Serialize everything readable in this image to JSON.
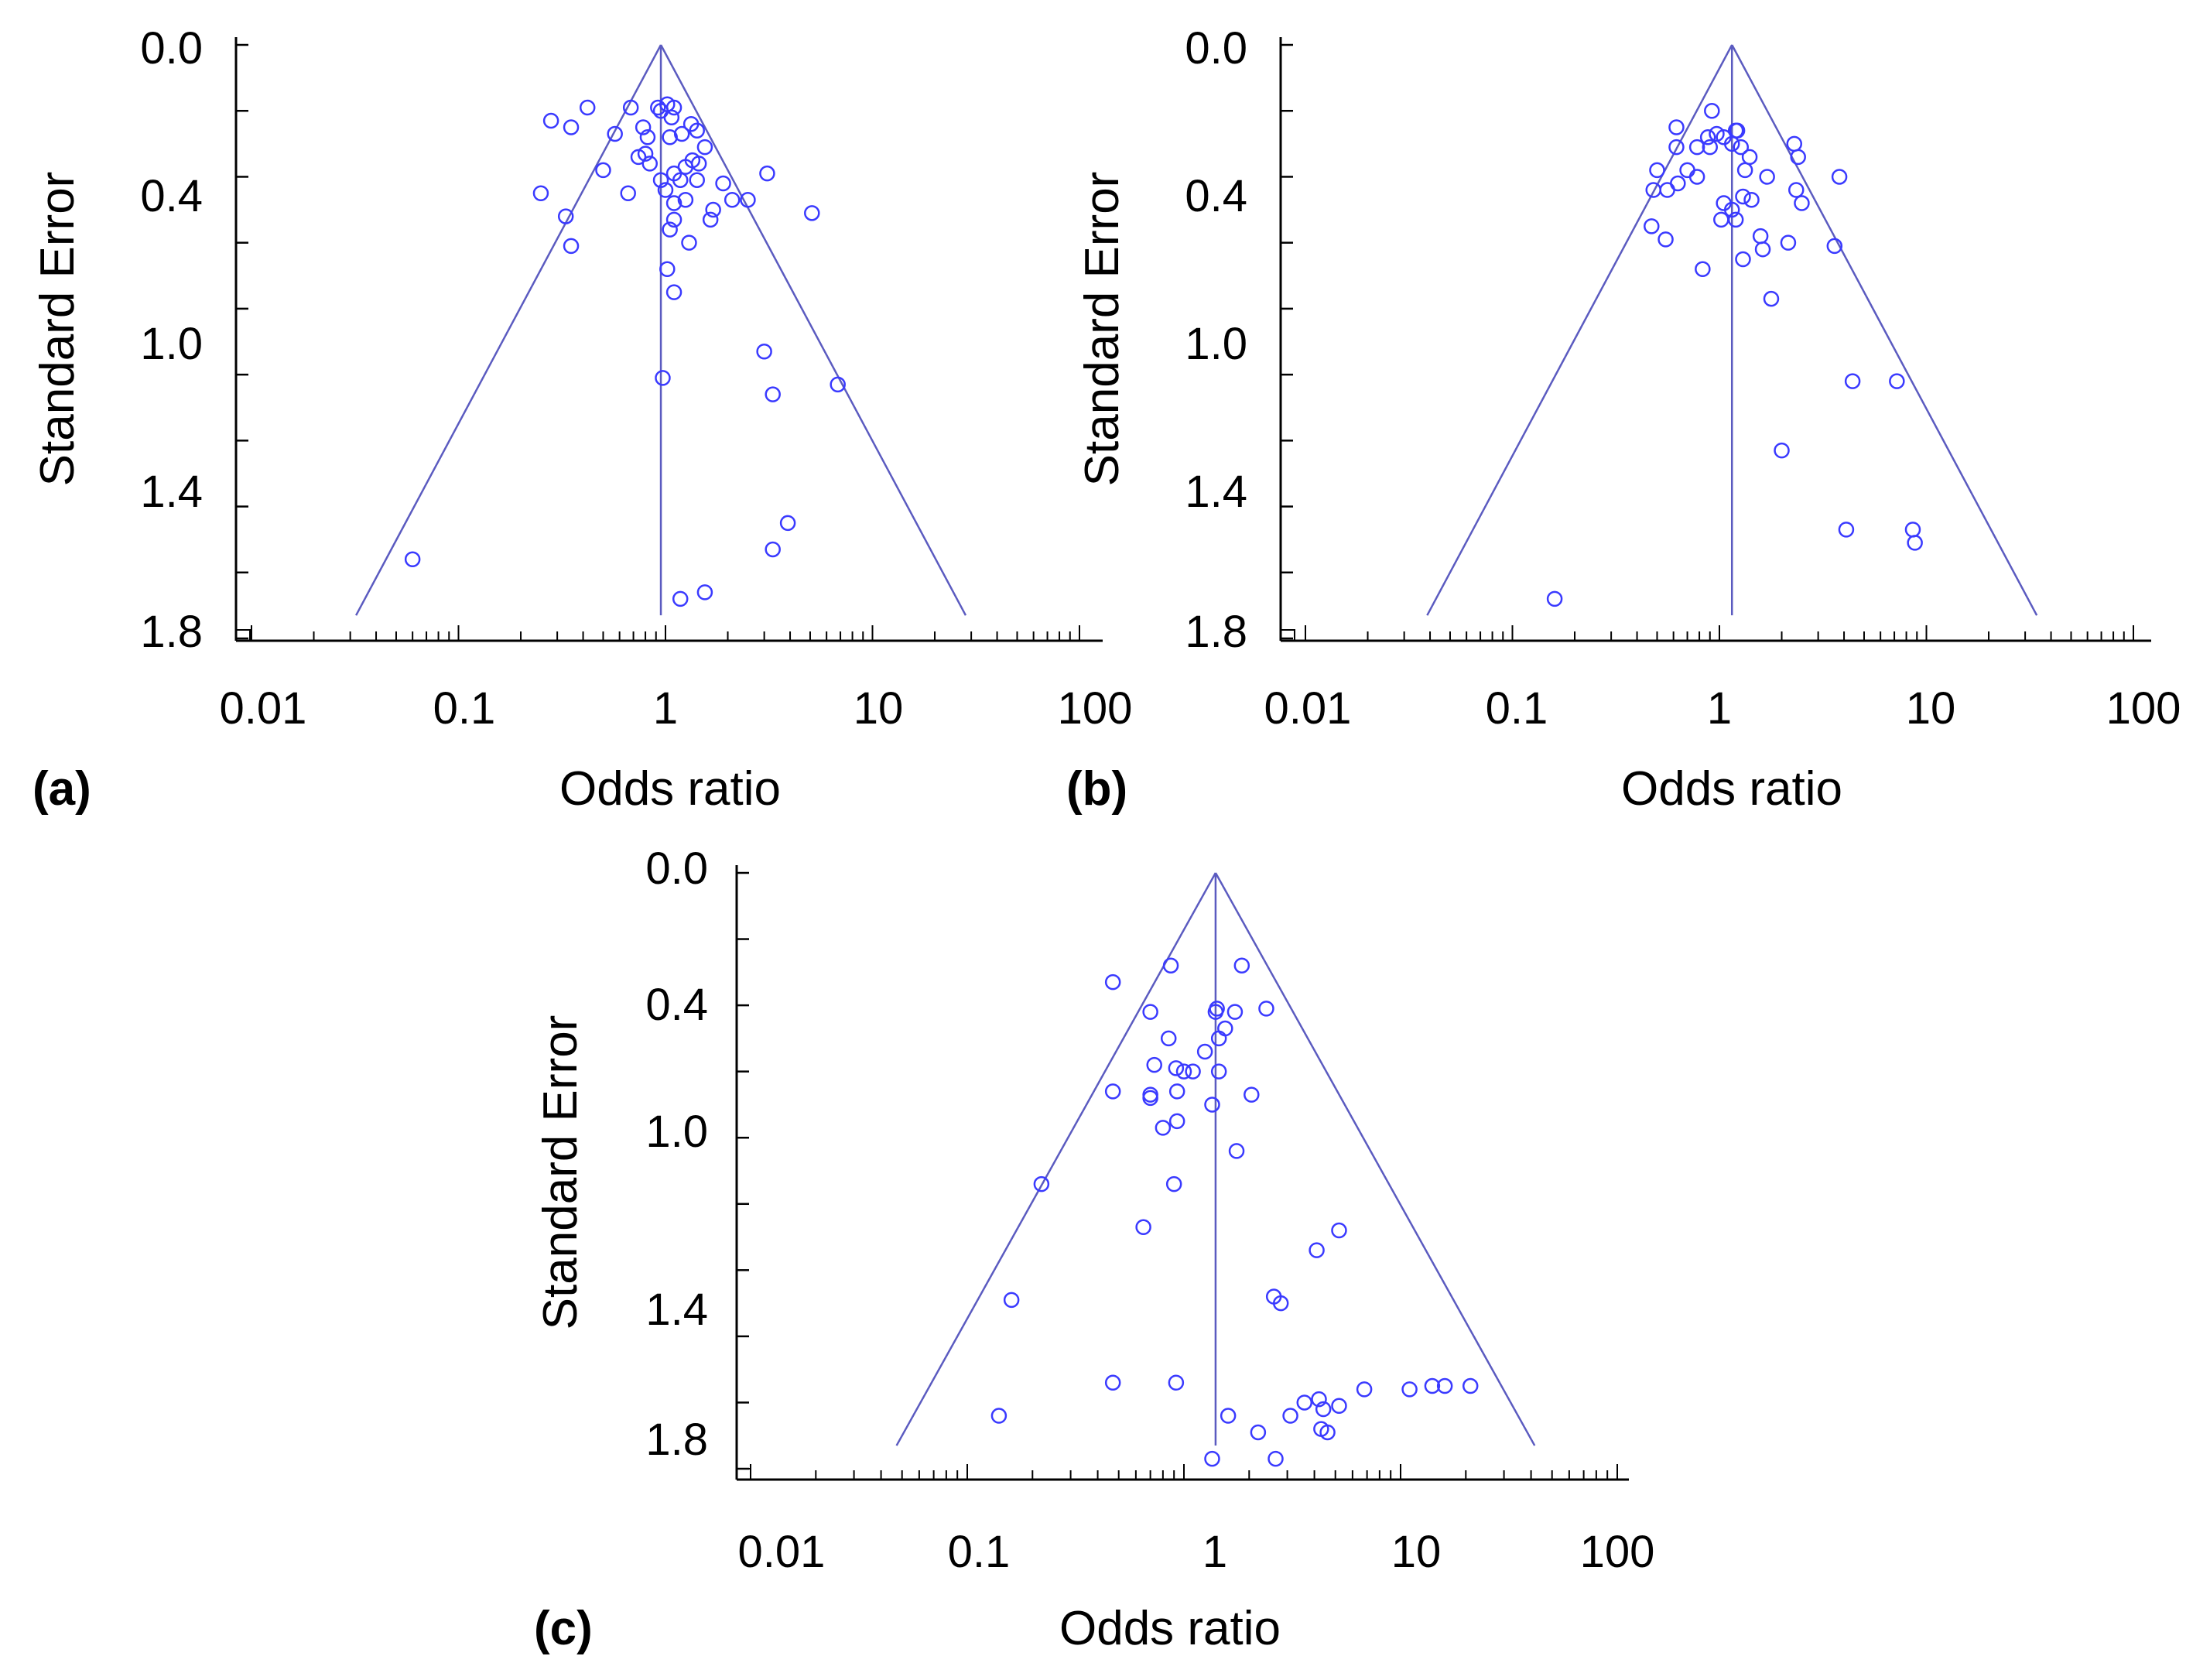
{
  "colors": {
    "marker": "#3a3aff",
    "funnel": "#5b5bc0",
    "axis": "#000000"
  },
  "chart_data": [
    {
      "type": "scatter",
      "panel_label": "(a)",
      "xlabel": "Odds ratio",
      "ylabel": "Standard Error",
      "xscale": "log",
      "xlim": [
        0.01,
        100
      ],
      "ylim": [
        0.0,
        1.85
      ],
      "x_ticks": [
        "0.01",
        "0.1",
        "1",
        "10",
        "100"
      ],
      "y_ticks": [
        "0.0",
        "0.4",
        "1.0",
        "1.4",
        "1.8"
      ],
      "pooled_or": 0.95,
      "funnel_bottom_se": 1.73,
      "points": [
        {
          "x": 0.28,
          "se": 0.23
        },
        {
          "x": 0.35,
          "se": 0.25
        },
        {
          "x": 0.42,
          "se": 0.19
        },
        {
          "x": 0.57,
          "se": 0.27
        },
        {
          "x": 0.68,
          "se": 0.19
        },
        {
          "x": 0.78,
          "se": 0.25
        },
        {
          "x": 0.82,
          "se": 0.28
        },
        {
          "x": 0.92,
          "se": 0.19
        },
        {
          "x": 0.95,
          "se": 0.2
        },
        {
          "x": 1.02,
          "se": 0.18
        },
        {
          "x": 1.07,
          "se": 0.22
        },
        {
          "x": 1.1,
          "se": 0.19
        },
        {
          "x": 1.2,
          "se": 0.27
        },
        {
          "x": 1.33,
          "se": 0.24
        },
        {
          "x": 1.42,
          "se": 0.26
        },
        {
          "x": 1.55,
          "se": 0.31
        },
        {
          "x": 1.05,
          "se": 0.28
        },
        {
          "x": 0.8,
          "se": 0.33
        },
        {
          "x": 0.74,
          "se": 0.34
        },
        {
          "x": 0.84,
          "se": 0.36
        },
        {
          "x": 0.5,
          "se": 0.38
        },
        {
          "x": 1.35,
          "se": 0.35
        },
        {
          "x": 1.45,
          "se": 0.36
        },
        {
          "x": 1.25,
          "se": 0.37
        },
        {
          "x": 1.1,
          "se": 0.39
        },
        {
          "x": 0.95,
          "se": 0.41
        },
        {
          "x": 1.18,
          "se": 0.41
        },
        {
          "x": 1.42,
          "se": 0.41
        },
        {
          "x": 1.9,
          "se": 0.42
        },
        {
          "x": 3.1,
          "se": 0.39
        },
        {
          "x": 0.25,
          "se": 0.45
        },
        {
          "x": 0.66,
          "se": 0.45
        },
        {
          "x": 1.0,
          "se": 0.44
        },
        {
          "x": 1.1,
          "se": 0.48
        },
        {
          "x": 1.25,
          "se": 0.47
        },
        {
          "x": 2.1,
          "se": 0.47
        },
        {
          "x": 2.5,
          "se": 0.47
        },
        {
          "x": 1.7,
          "se": 0.5
        },
        {
          "x": 5.1,
          "se": 0.51
        },
        {
          "x": 0.33,
          "se": 0.52
        },
        {
          "x": 1.1,
          "se": 0.53
        },
        {
          "x": 1.05,
          "se": 0.56
        },
        {
          "x": 1.3,
          "se": 0.6
        },
        {
          "x": 1.65,
          "se": 0.53
        },
        {
          "x": 0.35,
          "se": 0.61
        },
        {
          "x": 1.02,
          "se": 0.68
        },
        {
          "x": 1.1,
          "se": 0.75
        },
        {
          "x": 3.0,
          "se": 0.93
        },
        {
          "x": 0.97,
          "se": 1.01
        },
        {
          "x": 3.3,
          "se": 1.06
        },
        {
          "x": 6.8,
          "se": 1.03
        },
        {
          "x": 3.9,
          "se": 1.45
        },
        {
          "x": 3.3,
          "se": 1.53
        },
        {
          "x": 0.06,
          "se": 1.56
        },
        {
          "x": 1.55,
          "se": 1.66
        },
        {
          "x": 1.18,
          "se": 1.68
        }
      ]
    },
    {
      "type": "scatter",
      "panel_label": "(b)",
      "xlabel": "Odds ratio",
      "ylabel": "Standard Error",
      "xscale": "log",
      "xlim": [
        0.01,
        100
      ],
      "ylim": [
        0.0,
        1.85
      ],
      "x_ticks": [
        "0.01",
        "0.1",
        "1",
        "10",
        "100"
      ],
      "y_ticks": [
        "0.0",
        "0.4",
        "1.0",
        "1.4",
        "1.8"
      ],
      "pooled_or": 1.15,
      "funnel_bottom_se": 1.73,
      "points": [
        {
          "x": 0.92,
          "se": 0.2
        },
        {
          "x": 0.62,
          "se": 0.25
        },
        {
          "x": 1.2,
          "se": 0.26
        },
        {
          "x": 1.22,
          "se": 0.26
        },
        {
          "x": 0.88,
          "se": 0.28
        },
        {
          "x": 0.97,
          "se": 0.27
        },
        {
          "x": 1.05,
          "se": 0.28
        },
        {
          "x": 0.62,
          "se": 0.31
        },
        {
          "x": 0.78,
          "se": 0.31
        },
        {
          "x": 0.9,
          "se": 0.31
        },
        {
          "x": 1.15,
          "se": 0.3
        },
        {
          "x": 1.27,
          "se": 0.31
        },
        {
          "x": 2.3,
          "se": 0.3
        },
        {
          "x": 1.4,
          "se": 0.34
        },
        {
          "x": 2.4,
          "se": 0.34
        },
        {
          "x": 0.5,
          "se": 0.38
        },
        {
          "x": 0.7,
          "se": 0.38
        },
        {
          "x": 0.78,
          "se": 0.4
        },
        {
          "x": 1.33,
          "se": 0.38
        },
        {
          "x": 1.7,
          "se": 0.4
        },
        {
          "x": 3.8,
          "se": 0.4
        },
        {
          "x": 0.48,
          "se": 0.44
        },
        {
          "x": 0.56,
          "se": 0.44
        },
        {
          "x": 0.63,
          "se": 0.42
        },
        {
          "x": 1.3,
          "se": 0.46
        },
        {
          "x": 1.43,
          "se": 0.47
        },
        {
          "x": 2.35,
          "se": 0.44
        },
        {
          "x": 2.5,
          "se": 0.48
        },
        {
          "x": 1.05,
          "se": 0.48
        },
        {
          "x": 1.15,
          "se": 0.5
        },
        {
          "x": 1.02,
          "se": 0.53
        },
        {
          "x": 1.2,
          "se": 0.53
        },
        {
          "x": 0.47,
          "se": 0.55
        },
        {
          "x": 0.55,
          "se": 0.59
        },
        {
          "x": 1.58,
          "se": 0.58
        },
        {
          "x": 1.62,
          "se": 0.62
        },
        {
          "x": 2.15,
          "se": 0.6
        },
        {
          "x": 3.6,
          "se": 0.61
        },
        {
          "x": 1.3,
          "se": 0.65
        },
        {
          "x": 0.83,
          "se": 0.68
        },
        {
          "x": 1.78,
          "se": 0.77
        },
        {
          "x": 4.4,
          "se": 1.02
        },
        {
          "x": 7.2,
          "se": 1.02
        },
        {
          "x": 2.0,
          "se": 1.23
        },
        {
          "x": 4.1,
          "se": 1.47
        },
        {
          "x": 8.6,
          "se": 1.47
        },
        {
          "x": 8.8,
          "se": 1.51
        },
        {
          "x": 0.16,
          "se": 1.68
        }
      ]
    },
    {
      "type": "scatter",
      "panel_label": "(c)",
      "xlabel": "Odds ratio",
      "ylabel": "Standard Error",
      "xscale": "log",
      "xlim": [
        0.01,
        100
      ],
      "ylim": [
        0.0,
        1.85
      ],
      "x_ticks": [
        "0.01",
        "0.1",
        "1",
        "10",
        "100"
      ],
      "y_ticks": [
        "0.0",
        "0.4",
        "1.0",
        "1.4",
        "1.8"
      ],
      "pooled_or": 1.4,
      "funnel_bottom_se": 1.73,
      "points": [
        {
          "x": 0.87,
          "se": 0.28
        },
        {
          "x": 1.85,
          "se": 0.28
        },
        {
          "x": 0.47,
          "se": 0.33
        },
        {
          "x": 1.42,
          "se": 0.41
        },
        {
          "x": 1.4,
          "se": 0.42
        },
        {
          "x": 2.4,
          "se": 0.41
        },
        {
          "x": 1.72,
          "se": 0.42
        },
        {
          "x": 0.7,
          "se": 0.42
        },
        {
          "x": 1.55,
          "se": 0.47
        },
        {
          "x": 0.85,
          "se": 0.5
        },
        {
          "x": 1.45,
          "se": 0.5
        },
        {
          "x": 1.25,
          "se": 0.54
        },
        {
          "x": 0.73,
          "se": 0.58
        },
        {
          "x": 0.92,
          "se": 0.59
        },
        {
          "x": 1.1,
          "se": 0.6
        },
        {
          "x": 1.0,
          "se": 0.6
        },
        {
          "x": 1.45,
          "se": 0.6
        },
        {
          "x": 0.47,
          "se": 0.66
        },
        {
          "x": 0.7,
          "se": 0.67
        },
        {
          "x": 0.93,
          "se": 0.66
        },
        {
          "x": 0.7,
          "se": 0.68
        },
        {
          "x": 2.05,
          "se": 0.67
        },
        {
          "x": 1.35,
          "se": 0.7
        },
        {
          "x": 0.93,
          "se": 0.75
        },
        {
          "x": 0.8,
          "se": 0.77
        },
        {
          "x": 1.75,
          "se": 0.84
        },
        {
          "x": 0.22,
          "se": 0.94
        },
        {
          "x": 0.9,
          "se": 0.94
        },
        {
          "x": 0.65,
          "se": 1.07
        },
        {
          "x": 5.2,
          "se": 1.08
        },
        {
          "x": 4.1,
          "se": 1.14
        },
        {
          "x": 0.16,
          "se": 1.29
        },
        {
          "x": 2.6,
          "se": 1.28
        },
        {
          "x": 2.8,
          "se": 1.3
        },
        {
          "x": 0.47,
          "se": 1.54
        },
        {
          "x": 0.92,
          "se": 1.54
        },
        {
          "x": 6.8,
          "se": 1.56
        },
        {
          "x": 11.0,
          "se": 1.56
        },
        {
          "x": 14.0,
          "se": 1.55
        },
        {
          "x": 16.0,
          "se": 1.55
        },
        {
          "x": 21.0,
          "se": 1.55
        },
        {
          "x": 3.6,
          "se": 1.6
        },
        {
          "x": 4.2,
          "se": 1.59
        },
        {
          "x": 4.4,
          "se": 1.62
        },
        {
          "x": 5.2,
          "se": 1.61
        },
        {
          "x": 3.1,
          "se": 1.64
        },
        {
          "x": 0.14,
          "se": 1.64
        },
        {
          "x": 1.6,
          "se": 1.64
        },
        {
          "x": 4.3,
          "se": 1.68
        },
        {
          "x": 4.6,
          "se": 1.69
        },
        {
          "x": 2.2,
          "se": 1.69
        },
        {
          "x": 2.65,
          "se": 1.77
        },
        {
          "x": 1.35,
          "se": 1.77
        }
      ]
    }
  ]
}
